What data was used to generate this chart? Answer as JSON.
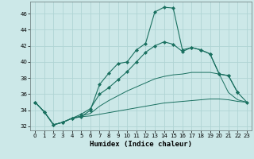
{
  "xlabel": "Humidex (Indice chaleur)",
  "bg_color": "#cce8e8",
  "grid_color": "#b0d4d4",
  "line_color": "#1a7060",
  "xlim": [
    -0.5,
    23.5
  ],
  "ylim": [
    31.5,
    47.5
  ],
  "xticks": [
    0,
    1,
    2,
    3,
    4,
    5,
    6,
    7,
    8,
    9,
    10,
    11,
    12,
    13,
    14,
    15,
    16,
    17,
    18,
    19,
    20,
    21,
    22,
    23
  ],
  "yticks": [
    32,
    34,
    36,
    38,
    40,
    42,
    44,
    46
  ],
  "s1_x": [
    0,
    1,
    2,
    3,
    4,
    5,
    6,
    7,
    8,
    9,
    10,
    11,
    12,
    13,
    14,
    15,
    16,
    17,
    18,
    19,
    20,
    21,
    22
  ],
  "s1_y": [
    35.0,
    33.8,
    32.2,
    32.5,
    33.0,
    33.2,
    34.0,
    37.2,
    38.6,
    39.8,
    40.0,
    41.5,
    42.3,
    46.2,
    46.8,
    46.7,
    41.5,
    41.8,
    41.5,
    41.0,
    38.5,
    38.3,
    36.2
  ],
  "s2_x": [
    0,
    1,
    2,
    3,
    4,
    5,
    6,
    7,
    8,
    9,
    10,
    11,
    12,
    13,
    14,
    15,
    16,
    17,
    18,
    19,
    20,
    21,
    22,
    23
  ],
  "s2_y": [
    35.0,
    33.8,
    32.2,
    32.5,
    33.0,
    33.5,
    34.2,
    36.0,
    36.8,
    37.8,
    38.8,
    40.0,
    41.2,
    42.0,
    42.5,
    42.2,
    41.3,
    41.8,
    41.5,
    41.0,
    38.5,
    38.3,
    36.2,
    35.0
  ],
  "s3_x": [
    0,
    1,
    2,
    3,
    4,
    5,
    6,
    7,
    8,
    9,
    10,
    11,
    12,
    13,
    14,
    15,
    16,
    17,
    18,
    19,
    20,
    21,
    22,
    23
  ],
  "s3_y": [
    35.0,
    33.8,
    32.2,
    32.5,
    33.0,
    33.3,
    33.6,
    34.5,
    35.2,
    35.8,
    36.4,
    36.9,
    37.4,
    37.9,
    38.2,
    38.4,
    38.5,
    38.7,
    38.7,
    38.7,
    38.5,
    36.2,
    35.3,
    35.0
  ],
  "s4_x": [
    0,
    1,
    2,
    3,
    4,
    5,
    6,
    7,
    8,
    9,
    10,
    11,
    12,
    13,
    14,
    15,
    16,
    17,
    18,
    19,
    20,
    21,
    22,
    23
  ],
  "s4_y": [
    35.0,
    33.8,
    32.2,
    32.5,
    33.0,
    33.2,
    33.3,
    33.5,
    33.7,
    33.9,
    34.1,
    34.3,
    34.5,
    34.7,
    34.9,
    35.0,
    35.1,
    35.2,
    35.3,
    35.4,
    35.4,
    35.3,
    35.1,
    35.0
  ]
}
